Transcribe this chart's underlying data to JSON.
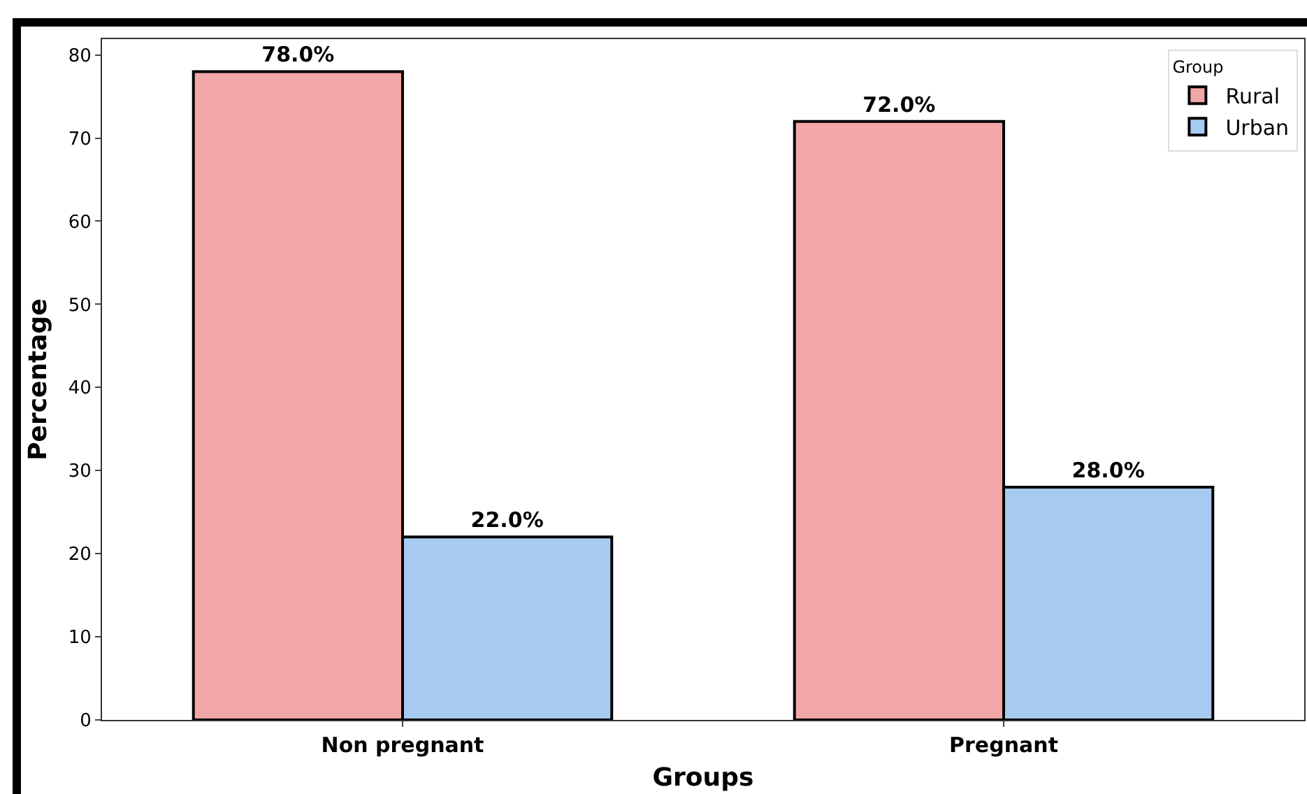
{
  "chart_data": {
    "type": "bar",
    "xlabel": "Groups",
    "ylabel": "Percentage",
    "legend_title": "Group",
    "categories": [
      "Non pregnant",
      "Pregnant"
    ],
    "series": [
      {
        "name": "Rural",
        "color": "#f1a7a7",
        "values": [
          78,
          72
        ],
        "value_labels": [
          "78.0%",
          "72.0%"
        ]
      },
      {
        "name": "Urban",
        "color": "#a7cbf0",
        "values": [
          22,
          28
        ],
        "value_labels": [
          "22.0%",
          "28.0%"
        ]
      }
    ],
    "ylim": [
      0,
      81.9
    ],
    "yticks": [
      0,
      10,
      20,
      30,
      40,
      50,
      60,
      70,
      80
    ],
    "grid": false,
    "legend": "top right"
  }
}
